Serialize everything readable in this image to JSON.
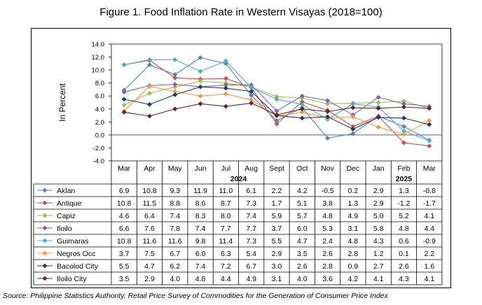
{
  "title": "Figure 1. Food Inflation Rate in Western Visayas (2018=100)",
  "source": "Source: Philippine Statistics Authority, Retail Price Survey of Commodities for the Generation of Consumer Price Index",
  "chart_data": {
    "type": "line",
    "ylabel": "In Percent",
    "ylim": [
      -4.0,
      14.0
    ],
    "yticks": [
      "14.0",
      "12.0",
      "10.0",
      "8.0",
      "6.0",
      "4.0",
      "2.0",
      "0.0",
      "-2.0",
      "-4.0"
    ],
    "grid": false,
    "categories": [
      "Mar",
      "Apr",
      "May",
      "Jun",
      "Jul",
      "Aug",
      "Sept",
      "Oct",
      "Nov",
      "Dec",
      "Jan",
      "Feb",
      "Mar"
    ],
    "year_labels": [
      {
        "label": "2024",
        "span": [
          0,
          9
        ]
      },
      {
        "label": "2025",
        "span": [
          10,
          12
        ]
      }
    ],
    "series": [
      {
        "name": "Aklan",
        "color": "#4f81bd",
        "marker": "diamond",
        "values": [
          6.9,
          10.8,
          9.3,
          11.9,
          11.0,
          6.1,
          2.2,
          4.2,
          -0.5,
          0.2,
          2.9,
          1.3,
          -0.8
        ],
        "labels": [
          "6.9",
          "10.8",
          "9.3",
          "11.9",
          "11.0",
          "6.1",
          "2.2",
          "4.2",
          "-0.5",
          "0.2",
          "2.9",
          "1.3",
          "-0.8"
        ]
      },
      {
        "name": "Antique",
        "color": "#c0504d",
        "marker": "diamond",
        "values": [
          10.8,
          11.5,
          8.8,
          8.6,
          8.7,
          7.3,
          1.7,
          5.1,
          3.8,
          1.3,
          2.9,
          -1.2,
          -1.7
        ],
        "labels": [
          "10.8",
          "11.5",
          "8.8",
          "8.6",
          "8.7",
          "7.3",
          "1.7",
          "5.1",
          "3.8",
          "1.3",
          "2.9",
          "-1.2",
          "-1.7"
        ]
      },
      {
        "name": "Capiz",
        "color": "#9bbb59",
        "marker": "diamond",
        "values": [
          4.6,
          6.4,
          7.4,
          8.3,
          8.0,
          7.4,
          5.9,
          5.7,
          4.8,
          4.9,
          5.0,
          5.2,
          4.1
        ],
        "labels": [
          "4.6",
          "6.4",
          "7.4",
          "8.3",
          "8.0",
          "7.4",
          "5.9",
          "5.7",
          "4.8",
          "4.9",
          "5.0",
          "5.2",
          "4.1"
        ]
      },
      {
        "name": "Iloilo",
        "color": "#8064a2",
        "marker": "diamond",
        "values": [
          6.6,
          7.6,
          7.8,
          7.4,
          7.7,
          7.7,
          3.7,
          6.0,
          5.3,
          3.1,
          5.8,
          4.8,
          4.4
        ],
        "labels": [
          "6.6",
          "7.6",
          "7.8",
          "7.4",
          "7.7",
          "7.7",
          "3.7",
          "6.0",
          "5.3",
          "3.1",
          "5.8",
          "4.8",
          "4.4"
        ]
      },
      {
        "name": "Guimaras",
        "color": "#4bacc6",
        "marker": "diamond",
        "values": [
          10.8,
          11.6,
          11.6,
          9.8,
          11.4,
          7.3,
          5.5,
          4.7,
          2.4,
          4.8,
          4.3,
          0.6,
          -0.9
        ],
        "labels": [
          "10.8",
          "11.6",
          "11.6",
          "9.8",
          "11.4",
          "7.3",
          "5.5",
          "4.7",
          "2.4",
          "4.8",
          "4.3",
          "0.6",
          "-0.9"
        ]
      },
      {
        "name": "Negros Occ",
        "color": "#f79646",
        "marker": "diamond",
        "values": [
          3.7,
          7.5,
          6.7,
          6.0,
          6.3,
          5.4,
          2.9,
          3.5,
          2.6,
          2.8,
          1.2,
          0.1,
          2.2
        ],
        "labels": [
          "3.7",
          "7.5",
          "6.7",
          "6.0",
          "6.3",
          "5.4",
          "2.9",
          "3.5",
          "2.6",
          "2.8",
          "1.2",
          "0.1",
          "2.2"
        ]
      },
      {
        "name": "Bacolod City",
        "color": "#1f3864",
        "marker": "diamond",
        "values": [
          5.5,
          4.7,
          6.2,
          7.4,
          7.2,
          6.7,
          3.0,
          2.6,
          2.8,
          0.9,
          2.7,
          2.6,
          1.6
        ],
        "labels": [
          "5.5",
          "4.7",
          "6.2",
          "7.4",
          "7.2",
          "6.7",
          "3.0",
          "2.6",
          "2.8",
          "0.9",
          "2.7",
          "2.6",
          "1.6"
        ]
      },
      {
        "name": "Iloilo City",
        "color": "#632523",
        "marker": "diamond",
        "values": [
          3.5,
          2.9,
          4.0,
          4.8,
          4.4,
          4.9,
          3.1,
          4.0,
          3.6,
          4.2,
          4.1,
          4.3,
          4.1
        ],
        "labels": [
          "3.5",
          "2.9",
          "4.0",
          "4.8",
          "4.4",
          "4.9",
          "3.1",
          "4.0",
          "3.6",
          "4.2",
          "4.1",
          "4.3",
          "4.1"
        ]
      }
    ]
  }
}
